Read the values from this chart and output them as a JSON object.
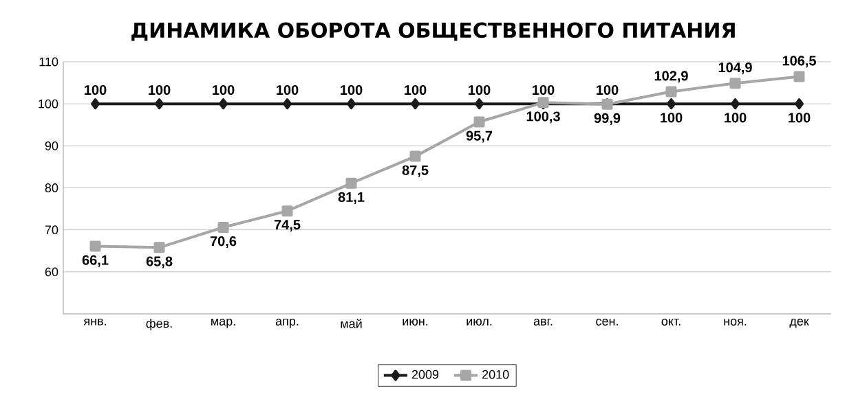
{
  "chart_data": {
    "type": "line",
    "title": "ДИНАМИКА ОБОРОТА ОБЩЕСТВЕННОГО ПИТАНИЯ",
    "categories": [
      "янв.",
      "фев.",
      "мар.",
      "апр.",
      "май",
      "июн.",
      "июл.",
      "авг.",
      "сен.",
      "окт.",
      "ноя.",
      "дек"
    ],
    "series": [
      {
        "name": "2009",
        "color": "#1a1a1a",
        "marker": "diamond",
        "values": [
          100,
          100,
          100,
          100,
          100,
          100,
          100,
          100,
          100,
          100,
          100,
          100
        ],
        "value_labels": [
          "100",
          "100",
          "100",
          "100",
          "100",
          "100",
          "100",
          "100",
          "100",
          "100",
          "100",
          "100"
        ]
      },
      {
        "name": "2010",
        "color": "#a6a6a6",
        "marker": "square",
        "values": [
          66.1,
          65.8,
          70.6,
          74.5,
          81.1,
          87.5,
          95.7,
          100.3,
          99.9,
          102.9,
          104.9,
          106.5
        ],
        "value_labels": [
          "66,1",
          "65,8",
          "70,6",
          "74,5",
          "81,1",
          "87,5",
          "95,7",
          "100,3",
          "99,9",
          "102,9",
          "104,9",
          "106,5"
        ]
      }
    ],
    "ylim": [
      50,
      110
    ],
    "yticks": [
      60,
      70,
      80,
      90,
      100,
      110
    ],
    "grid": "y",
    "legend": "bottom",
    "line_style": "solid"
  }
}
